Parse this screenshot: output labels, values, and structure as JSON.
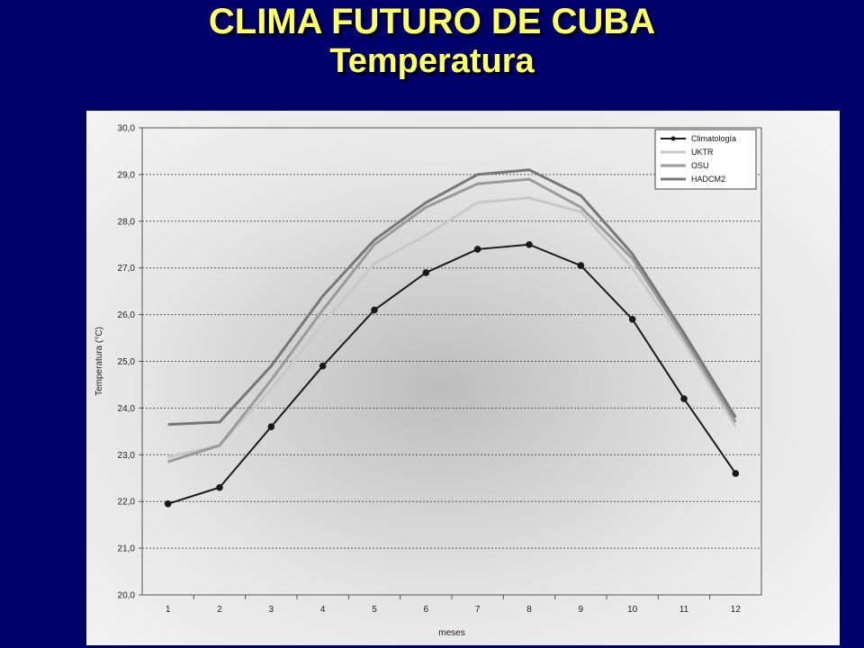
{
  "slide": {
    "title": "CLIMA FUTURO DE CUBA",
    "subtitle": "Temperatura"
  },
  "chart_data": {
    "type": "line",
    "xlabel": "meses",
    "ylabel": "Temperatura (°C)",
    "ylim": [
      20.0,
      30.0
    ],
    "yticks": [
      "20,0",
      "21,0",
      "22,0",
      "23,0",
      "24,0",
      "25,0",
      "26,0",
      "27,0",
      "28,0",
      "29,0",
      "30,0"
    ],
    "x": [
      1,
      2,
      3,
      4,
      5,
      6,
      7,
      8,
      9,
      10,
      11,
      12
    ],
    "grid": true,
    "legend_position": "top-right",
    "series": [
      {
        "name": "Climatología",
        "color": "#1a1a1a",
        "markers": true,
        "values": [
          21.95,
          22.3,
          23.6,
          24.9,
          26.1,
          26.9,
          27.4,
          27.5,
          27.05,
          25.9,
          24.2,
          22.6
        ]
      },
      {
        "name": "UKTR",
        "color": "#c8c8c8",
        "markers": false,
        "values": [
          22.95,
          23.2,
          24.4,
          25.8,
          27.1,
          27.7,
          28.4,
          28.5,
          28.2,
          27.0,
          25.4,
          23.6
        ]
      },
      {
        "name": "OSU",
        "color": "#9a9a9a",
        "markers": false,
        "values": [
          22.85,
          23.2,
          24.6,
          26.1,
          27.5,
          28.3,
          28.8,
          28.9,
          28.3,
          27.2,
          25.5,
          23.7
        ]
      },
      {
        "name": "HADCM2",
        "color": "#777777",
        "markers": false,
        "values": [
          23.65,
          23.7,
          24.9,
          26.4,
          27.6,
          28.4,
          29.0,
          29.1,
          28.55,
          27.3,
          25.6,
          23.8
        ]
      }
    ]
  }
}
